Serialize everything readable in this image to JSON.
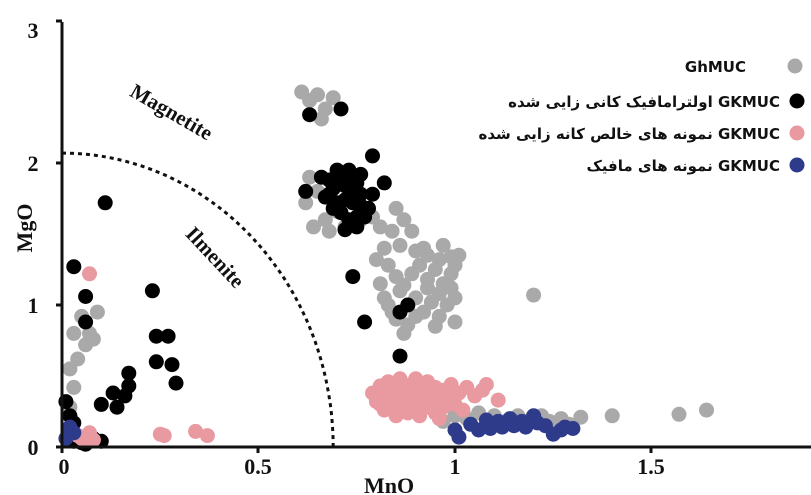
{
  "chart_data": {
    "type": "scatter",
    "xlabel": "MnO",
    "ylabel": "MgO",
    "xlim": [
      0,
      1.9
    ],
    "ylim": [
      0,
      3
    ],
    "x_ticks": [
      "0",
      "0.5",
      "1",
      "1.5"
    ],
    "y_ticks": [
      "0",
      "1",
      "2",
      "3"
    ],
    "annotations": {
      "upper_region": "Magnetite",
      "lower_region": "Ilmenite"
    },
    "boundary": {
      "style": "dashed",
      "shape": "quarter-ellipse",
      "x_intercept": 0.69,
      "y_intercept": 2.07
    },
    "legend_position": "top-right",
    "series": [
      {
        "name": "GhMUC",
        "color": "#a9a9a9",
        "points": [
          [
            0.03,
            0.42
          ],
          [
            0.04,
            0.62
          ],
          [
            0.03,
            0.8
          ],
          [
            0.05,
            0.92
          ],
          [
            0.06,
            0.72
          ],
          [
            0.07,
            0.8
          ],
          [
            0.08,
            0.76
          ],
          [
            0.09,
            0.95
          ],
          [
            0.02,
            0.28
          ],
          [
            0.02,
            0.55
          ],
          [
            0.61,
            2.5
          ],
          [
            0.63,
            2.44
          ],
          [
            0.65,
            2.48
          ],
          [
            0.67,
            2.38
          ],
          [
            0.66,
            2.31
          ],
          [
            0.69,
            2.46
          ],
          [
            0.63,
            1.9
          ],
          [
            0.65,
            1.8
          ],
          [
            0.62,
            1.72
          ],
          [
            0.64,
            1.55
          ],
          [
            0.67,
            1.6
          ],
          [
            0.7,
            1.66
          ],
          [
            0.68,
            1.52
          ],
          [
            0.72,
            1.55
          ],
          [
            0.76,
            1.6
          ],
          [
            0.79,
            1.62
          ],
          [
            0.81,
            1.55
          ],
          [
            0.84,
            1.52
          ],
          [
            0.85,
            1.68
          ],
          [
            0.87,
            1.6
          ],
          [
            0.89,
            1.52
          ],
          [
            0.86,
            1.42
          ],
          [
            0.9,
            1.38
          ],
          [
            0.93,
            1.35
          ],
          [
            0.96,
            1.32
          ],
          [
            0.99,
            1.34
          ],
          [
            1.01,
            1.35
          ],
          [
            0.8,
            1.32
          ],
          [
            0.83,
            1.28
          ],
          [
            0.85,
            1.2
          ],
          [
            0.87,
            1.14
          ],
          [
            0.89,
            1.22
          ],
          [
            0.91,
            1.28
          ],
          [
            0.93,
            1.18
          ],
          [
            0.95,
            1.25
          ],
          [
            0.97,
            1.15
          ],
          [
            0.99,
            1.22
          ],
          [
            0.82,
            1.05
          ],
          [
            0.84,
            0.95
          ],
          [
            0.86,
            1.1
          ],
          [
            0.88,
            1.0
          ],
          [
            0.9,
            1.05
          ],
          [
            0.92,
            0.95
          ],
          [
            0.94,
            1.02
          ],
          [
            0.96,
            0.92
          ],
          [
            0.98,
            1.0
          ],
          [
            1.0,
            1.05
          ],
          [
            0.81,
            1.15
          ],
          [
            0.83,
            1.0
          ],
          [
            0.85,
            0.9
          ],
          [
            0.88,
            0.86
          ],
          [
            0.9,
            0.92
          ],
          [
            0.95,
            0.85
          ],
          [
            1.0,
            0.88
          ],
          [
            0.93,
            1.12
          ],
          [
            0.96,
            1.08
          ],
          [
            0.99,
            1.12
          ],
          [
            0.87,
            0.8
          ],
          [
            0.92,
            1.4
          ],
          [
            0.97,
            1.42
          ],
          [
            1.0,
            1.28
          ],
          [
            0.82,
            1.4
          ],
          [
            1.2,
            1.07
          ],
          [
            0.97,
            0.18
          ],
          [
            1.0,
            0.22
          ],
          [
            1.03,
            0.2
          ],
          [
            1.06,
            0.24
          ],
          [
            1.1,
            0.22
          ],
          [
            1.13,
            0.18
          ],
          [
            1.16,
            0.22
          ],
          [
            1.19,
            0.19
          ],
          [
            1.22,
            0.22
          ],
          [
            1.24,
            0.18
          ],
          [
            1.27,
            0.2
          ],
          [
            1.29,
            0.16
          ],
          [
            1.32,
            0.21
          ],
          [
            1.4,
            0.22
          ],
          [
            1.57,
            0.23
          ],
          [
            1.64,
            0.26
          ],
          [
            1.08,
            0.15
          ],
          [
            1.18,
            0.16
          ],
          [
            1.26,
            0.14
          ]
        ]
      },
      {
        "name": "اولترامافیک کانی زایی شده GKMUC",
        "color": "#000000",
        "points": [
          [
            0.01,
            0.32
          ],
          [
            0.02,
            0.22
          ],
          [
            0.02,
            0.12
          ],
          [
            0.03,
            0.04
          ],
          [
            0.03,
            0.17
          ],
          [
            0.04,
            0.08
          ],
          [
            0.05,
            0.03
          ],
          [
            0.06,
            0.02
          ],
          [
            0.08,
            0.06
          ],
          [
            0.1,
            0.04
          ],
          [
            0.03,
            1.27
          ],
          [
            0.06,
            1.06
          ],
          [
            0.06,
            0.88
          ],
          [
            0.1,
            0.3
          ],
          [
            0.11,
            1.72
          ],
          [
            0.13,
            0.38
          ],
          [
            0.14,
            0.28
          ],
          [
            0.16,
            0.36
          ],
          [
            0.17,
            0.52
          ],
          [
            0.17,
            0.43
          ],
          [
            0.23,
            1.1
          ],
          [
            0.24,
            0.6
          ],
          [
            0.24,
            0.78
          ],
          [
            0.27,
            0.78
          ],
          [
            0.28,
            0.58
          ],
          [
            0.29,
            0.45
          ],
          [
            0.63,
            2.34
          ],
          [
            0.71,
            2.38
          ],
          [
            0.62,
            1.8
          ],
          [
            0.79,
            2.05
          ],
          [
            0.82,
            1.86
          ],
          [
            0.69,
            1.68
          ],
          [
            0.66,
            1.9
          ],
          [
            0.68,
            1.88
          ],
          [
            0.69,
            1.82
          ],
          [
            0.7,
            1.86
          ],
          [
            0.71,
            1.9
          ],
          [
            0.72,
            1.84
          ],
          [
            0.73,
            1.88
          ],
          [
            0.74,
            1.82
          ],
          [
            0.75,
            1.86
          ],
          [
            0.76,
            1.78
          ],
          [
            0.67,
            1.76
          ],
          [
            0.7,
            1.72
          ],
          [
            0.72,
            1.74
          ],
          [
            0.74,
            1.72
          ],
          [
            0.76,
            1.7
          ],
          [
            0.71,
            1.65
          ],
          [
            0.73,
            1.6
          ],
          [
            0.75,
            1.62
          ],
          [
            0.78,
            1.68
          ],
          [
            0.79,
            1.78
          ],
          [
            0.72,
            1.53
          ],
          [
            0.75,
            1.55
          ],
          [
            0.77,
            1.62
          ],
          [
            0.76,
            1.92
          ],
          [
            0.7,
            1.95
          ],
          [
            0.68,
            1.78
          ],
          [
            0.73,
            1.95
          ],
          [
            0.74,
            1.2
          ],
          [
            0.77,
            0.88
          ],
          [
            0.86,
            0.95
          ],
          [
            0.88,
            1.0
          ],
          [
            0.86,
            0.64
          ]
        ]
      },
      {
        "name": "نمونه های خالص کانه زایی شده GKMUC",
        "color": "#e99aa0",
        "points": [
          [
            0.07,
            1.22
          ],
          [
            0.02,
            0.12
          ],
          [
            0.04,
            0.08
          ],
          [
            0.05,
            0.06
          ],
          [
            0.06,
            0.05
          ],
          [
            0.07,
            0.1
          ],
          [
            0.08,
            0.05
          ],
          [
            0.25,
            0.09
          ],
          [
            0.26,
            0.08
          ],
          [
            0.34,
            0.11
          ],
          [
            0.37,
            0.08
          ],
          [
            0.79,
            0.38
          ],
          [
            0.8,
            0.32
          ],
          [
            0.81,
            0.43
          ],
          [
            0.81,
            0.3
          ],
          [
            0.82,
            0.38
          ],
          [
            0.82,
            0.26
          ],
          [
            0.83,
            0.46
          ],
          [
            0.84,
            0.35
          ],
          [
            0.84,
            0.28
          ],
          [
            0.85,
            0.41
          ],
          [
            0.85,
            0.22
          ],
          [
            0.86,
            0.34
          ],
          [
            0.86,
            0.48
          ],
          [
            0.87,
            0.29
          ],
          [
            0.87,
            0.4
          ],
          [
            0.88,
            0.36
          ],
          [
            0.88,
            0.24
          ],
          [
            0.89,
            0.44
          ],
          [
            0.89,
            0.3
          ],
          [
            0.9,
            0.38
          ],
          [
            0.9,
            0.48
          ],
          [
            0.91,
            0.32
          ],
          [
            0.91,
            0.22
          ],
          [
            0.92,
            0.42
          ],
          [
            0.92,
            0.36
          ],
          [
            0.93,
            0.28
          ],
          [
            0.93,
            0.46
          ],
          [
            0.94,
            0.38
          ],
          [
            0.94,
            0.3
          ],
          [
            0.95,
            0.42
          ],
          [
            0.95,
            0.24
          ],
          [
            0.96,
            0.34
          ],
          [
            0.97,
            0.4
          ],
          [
            0.97,
            0.28
          ],
          [
            0.98,
            0.36
          ],
          [
            0.99,
            0.44
          ],
          [
            1.0,
            0.3
          ],
          [
            1.01,
            0.38
          ],
          [
            1.03,
            0.42
          ],
          [
            1.05,
            0.36
          ],
          [
            1.07,
            0.4
          ],
          [
            1.08,
            0.44
          ],
          [
            0.96,
            0.2
          ],
          [
            1.02,
            0.26
          ],
          [
            1.11,
            0.33
          ]
        ]
      },
      {
        "name": "نمونه های مافیک GKMUC",
        "color": "#2e3a8a",
        "points": [
          [
            0.01,
            0.06
          ],
          [
            0.03,
            0.1
          ],
          [
            0.02,
            0.14
          ],
          [
            1.0,
            0.12
          ],
          [
            1.01,
            0.07
          ],
          [
            1.04,
            0.16
          ],
          [
            1.06,
            0.12
          ],
          [
            1.08,
            0.19
          ],
          [
            1.09,
            0.13
          ],
          [
            1.11,
            0.18
          ],
          [
            1.12,
            0.14
          ],
          [
            1.14,
            0.2
          ],
          [
            1.15,
            0.15
          ],
          [
            1.17,
            0.18
          ],
          [
            1.18,
            0.14
          ],
          [
            1.2,
            0.22
          ],
          [
            1.21,
            0.17
          ],
          [
            1.23,
            0.15
          ],
          [
            1.25,
            0.09
          ],
          [
            1.27,
            0.12
          ],
          [
            1.28,
            0.14
          ],
          [
            1.3,
            0.13
          ]
        ]
      }
    ]
  }
}
